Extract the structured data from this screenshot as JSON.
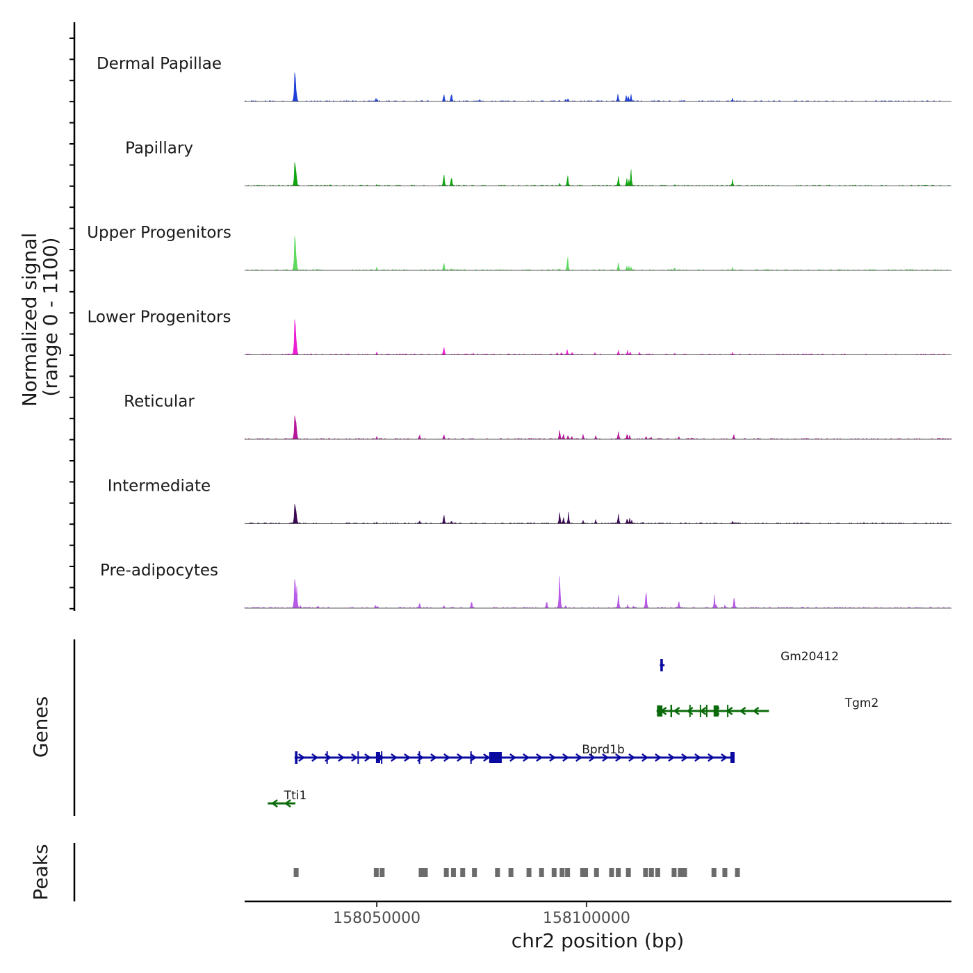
{
  "chart_data": {
    "type": "coverage-track",
    "x_label": "chr2 position (bp)",
    "x_range": [
      158018500,
      158187000
    ],
    "x_ticks": [
      {
        "value": 158050000,
        "label": "158050000"
      },
      {
        "value": 158100000,
        "label": "158100000"
      }
    ],
    "signal_axis_label": "Normalized signal",
    "signal_range_label": "(range 0 - 1100)",
    "signal_range": [
      0,
      1100
    ],
    "tracks": [
      {
        "name": "Dermal Papillae",
        "color": "#1f3fd6",
        "peaks": [
          [
            158030500,
            1100
          ],
          [
            158030800,
            350
          ],
          [
            158049800,
            80
          ],
          [
            158050100,
            60
          ],
          [
            158066000,
            220
          ],
          [
            158067800,
            260
          ],
          [
            158074500,
            40
          ],
          [
            158093500,
            40
          ],
          [
            158095000,
            70
          ],
          [
            158095600,
            90
          ],
          [
            158107500,
            210
          ],
          [
            158109500,
            180
          ],
          [
            158110000,
            160
          ],
          [
            158110600,
            190
          ],
          [
            158134800,
            80
          ]
        ]
      },
      {
        "name": "Papillary",
        "color": "#11a511",
        "peaks": [
          [
            158030500,
            900
          ],
          [
            158030800,
            420
          ],
          [
            158039000,
            40
          ],
          [
            158050000,
            40
          ],
          [
            158066000,
            360
          ],
          [
            158067800,
            300
          ],
          [
            158093600,
            80
          ],
          [
            158095500,
            320
          ],
          [
            158107600,
            290
          ],
          [
            158109600,
            210
          ],
          [
            158110100,
            170
          ],
          [
            158110600,
            430
          ],
          [
            158121000,
            40
          ],
          [
            158134800,
            160
          ]
        ]
      },
      {
        "name": "Upper Progenitors",
        "color": "#5ed95e",
        "peaks": [
          [
            158030500,
            1300
          ],
          [
            158030800,
            450
          ],
          [
            158050000,
            80
          ],
          [
            158066000,
            230
          ],
          [
            158067800,
            60
          ],
          [
            158093600,
            50
          ],
          [
            158095500,
            410
          ],
          [
            158107600,
            230
          ],
          [
            158109600,
            120
          ],
          [
            158110100,
            110
          ],
          [
            158110600,
            90
          ],
          [
            158121000,
            80
          ],
          [
            158134800,
            70
          ]
        ]
      },
      {
        "name": "Lower Progenitors",
        "color": "#ee1dd3",
        "peaks": [
          [
            158030500,
            1350
          ],
          [
            158030800,
            500
          ],
          [
            158050000,
            70
          ],
          [
            158059000,
            40
          ],
          [
            158066000,
            240
          ],
          [
            158073000,
            40
          ],
          [
            158093000,
            70
          ],
          [
            158094000,
            70
          ],
          [
            158095400,
            140
          ],
          [
            158096600,
            80
          ],
          [
            158102000,
            50
          ],
          [
            158107600,
            130
          ],
          [
            158109800,
            110
          ],
          [
            158110400,
            90
          ],
          [
            158112600,
            60
          ],
          [
            158115000,
            40
          ],
          [
            158121000,
            50
          ],
          [
            158134800,
            60
          ]
        ]
      },
      {
        "name": "Reticular",
        "color": "#b5169c",
        "peaks": [
          [
            158030500,
            900
          ],
          [
            158030800,
            500
          ],
          [
            158050000,
            70
          ],
          [
            158060200,
            140
          ],
          [
            158066000,
            140
          ],
          [
            158093600,
            280
          ],
          [
            158094500,
            160
          ],
          [
            158095600,
            120
          ],
          [
            158096500,
            80
          ],
          [
            158099200,
            120
          ],
          [
            158102200,
            100
          ],
          [
            158107600,
            230
          ],
          [
            158109700,
            180
          ],
          [
            158110300,
            100
          ],
          [
            158114200,
            90
          ],
          [
            158115400,
            60
          ],
          [
            158122000,
            80
          ],
          [
            158125000,
            40
          ],
          [
            158135100,
            140
          ]
        ]
      },
      {
        "name": "Intermediate",
        "color": "#3a0a54",
        "peaks": [
          [
            158030500,
            750
          ],
          [
            158030800,
            380
          ],
          [
            158050000,
            40
          ],
          [
            158060200,
            90
          ],
          [
            158066000,
            280
          ],
          [
            158067800,
            90
          ],
          [
            158093600,
            350
          ],
          [
            158094500,
            200
          ],
          [
            158095700,
            280
          ],
          [
            158099200,
            80
          ],
          [
            158102200,
            110
          ],
          [
            158107600,
            290
          ],
          [
            158109700,
            170
          ],
          [
            158110300,
            140
          ],
          [
            158110800,
            90
          ],
          [
            158113500,
            50
          ],
          [
            158134800,
            60
          ]
        ]
      },
      {
        "name": "Pre-adipocytes",
        "color": "#b85ae8",
        "peaks": [
          [
            158030500,
            1100
          ],
          [
            158030900,
            600
          ],
          [
            158031800,
            80
          ],
          [
            158036000,
            70
          ],
          [
            158049700,
            90
          ],
          [
            158050200,
            60
          ],
          [
            158060200,
            160
          ],
          [
            158066000,
            80
          ],
          [
            158072600,
            230
          ],
          [
            158090500,
            230
          ],
          [
            158093600,
            1000
          ],
          [
            158095000,
            80
          ],
          [
            158107600,
            400
          ],
          [
            158109800,
            80
          ],
          [
            158111200,
            70
          ],
          [
            158114200,
            550
          ],
          [
            158118000,
            40
          ],
          [
            158122000,
            220
          ],
          [
            158130500,
            300
          ],
          [
            158130900,
            120
          ],
          [
            158133000,
            80
          ],
          [
            158135200,
            350
          ]
        ]
      }
    ],
    "genes_label": "Genes",
    "genes": [
      {
        "name": "Gm20412",
        "strand": "+",
        "color": "#0a0aa0",
        "start": 158117500,
        "end": 158118600,
        "exons": [
          [
            158117600,
            158118200
          ]
        ]
      },
      {
        "name": "Tgm2",
        "strand": "-",
        "color": "#0b6b0b",
        "start": 158116700,
        "end": 158143500,
        "exons": [
          [
            158116800,
            158118100
          ],
          [
            158120000,
            158120400
          ],
          [
            158124500,
            158124800
          ],
          [
            158127000,
            158127300
          ],
          [
            158128500,
            158128800
          ],
          [
            158130300,
            158131500
          ],
          [
            158133500,
            158133800
          ]
        ]
      },
      {
        "name": "Bprd1b",
        "strand": "+",
        "color": "#0a0aa0",
        "start": 158030400,
        "end": 158135300,
        "exons": [
          [
            158030500,
            158031100
          ],
          [
            158038000,
            158038200
          ],
          [
            158045400,
            158045600
          ],
          [
            158049800,
            158050800
          ],
          [
            158051000,
            158051200
          ],
          [
            158060000,
            158060200
          ],
          [
            158072300,
            158072500
          ],
          [
            158076800,
            158079800
          ],
          [
            158134300,
            158135300
          ]
        ]
      },
      {
        "name": "Tti1",
        "strand": "-",
        "color": "#0b6b0b",
        "start": 158024000,
        "end": 158030600,
        "exons": []
      }
    ],
    "peaks_label": "Peaks",
    "peak_regions": [
      [
        158030200,
        158031000
      ],
      [
        158049300,
        158050000
      ],
      [
        158050700,
        158051400
      ],
      [
        158060000,
        158060700
      ],
      [
        158061000,
        158061700
      ],
      [
        158066000,
        158066700
      ],
      [
        158067700,
        158068400
      ],
      [
        158069900,
        158070600
      ],
      [
        158072700,
        158073400
      ],
      [
        158078200,
        158078800
      ],
      [
        158081400,
        158082000
      ],
      [
        158085700,
        158086400
      ],
      [
        158088700,
        158089400
      ],
      [
        158091700,
        158092400
      ],
      [
        158093600,
        158094300
      ],
      [
        158094900,
        158095600
      ],
      [
        158098500,
        158099200
      ],
      [
        158099200,
        158099900
      ],
      [
        158101800,
        158102500
      ],
      [
        158105400,
        158106100
      ],
      [
        158107000,
        158107700
      ],
      [
        158109400,
        158110400
      ],
      [
        158113500,
        158114200
      ],
      [
        158114900,
        158115600
      ],
      [
        158116400,
        158117200
      ],
      [
        158120300,
        158121000
      ],
      [
        158121800,
        158122500
      ],
      [
        158122800,
        158123500
      ],
      [
        158129800,
        158130500
      ],
      [
        158132400,
        158133100
      ],
      [
        158135400,
        158136100
      ]
    ]
  }
}
